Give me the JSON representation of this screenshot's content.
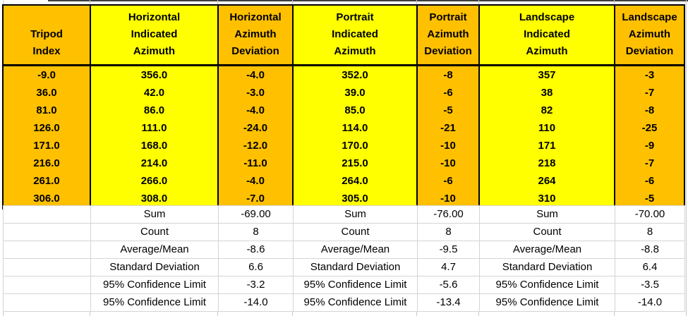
{
  "colors": {
    "orange": "#FFC000",
    "yellow": "#FFFF00",
    "gridline": "#D4D4D4",
    "table_border": "#000000"
  },
  "table": {
    "columns": [
      {
        "label": "Tripod Index",
        "lines": [
          "Tripod",
          "Index"
        ],
        "fill": "orange"
      },
      {
        "label": "Horizontal Indicated Azimuth",
        "lines": [
          "Horizontal",
          "Indicated",
          "Azimuth"
        ],
        "fill": "yellow"
      },
      {
        "label": "Horizontal Azimuth Deviation",
        "lines": [
          "Horizontal",
          "Azimuth",
          "Deviation"
        ],
        "fill": "orange"
      },
      {
        "label": "Portrait Indicated Azimuth",
        "lines": [
          "Portrait",
          "Indicated",
          "Azimuth"
        ],
        "fill": "yellow"
      },
      {
        "label": "Portrait Azimuth Deviation",
        "lines": [
          "Portrait",
          "Azimuth",
          "Deviation"
        ],
        "fill": "orange"
      },
      {
        "label": "Landscape Indicated Azimuth",
        "lines": [
          "Landscape",
          "Indicated",
          "Azimuth"
        ],
        "fill": "yellow"
      },
      {
        "label": "Landscape Azimuth Deviation",
        "lines": [
          "Landscape",
          "Azimuth",
          "Deviation"
        ],
        "fill": "orange"
      }
    ],
    "rows": [
      [
        "-9.0",
        "356.0",
        "-4.0",
        "352.0",
        "-8",
        "357",
        "-3"
      ],
      [
        "36.0",
        "42.0",
        "-3.0",
        "39.0",
        "-6",
        "38",
        "-7"
      ],
      [
        "81.0",
        "86.0",
        "-4.0",
        "85.0",
        "-5",
        "82",
        "-8"
      ],
      [
        "126.0",
        "111.0",
        "-24.0",
        "114.0",
        "-21",
        "110",
        "-25"
      ],
      [
        "171.0",
        "168.0",
        "-12.0",
        "170.0",
        "-10",
        "171",
        "-9"
      ],
      [
        "216.0",
        "214.0",
        "-11.0",
        "215.0",
        "-10",
        "218",
        "-7"
      ],
      [
        "261.0",
        "266.0",
        "-4.0",
        "264.0",
        "-6",
        "264",
        "-6"
      ],
      [
        "306.0",
        "308.0",
        "-7.0",
        "305.0",
        "-10",
        "310",
        "-5"
      ]
    ],
    "summary": [
      {
        "label": "Sum",
        "horizontal": "-69.00",
        "portrait": "-76.00",
        "landscape": "-70.00"
      },
      {
        "label": "Count",
        "horizontal": "8",
        "portrait": "8",
        "landscape": "8"
      },
      {
        "label": "Average/Mean",
        "horizontal": "-8.6",
        "portrait": "-9.5",
        "landscape": "-8.8"
      },
      {
        "label": "Standard Deviation",
        "horizontal": "6.6",
        "portrait": "4.7",
        "landscape": "6.4"
      },
      {
        "label": "95% Confidence Limit",
        "horizontal": "-3.2",
        "portrait": "-5.6",
        "landscape": "-3.5"
      },
      {
        "label": "95% Confidence Limit",
        "horizontal": "-14.0",
        "portrait": "-13.4",
        "landscape": "-14.0"
      }
    ]
  }
}
